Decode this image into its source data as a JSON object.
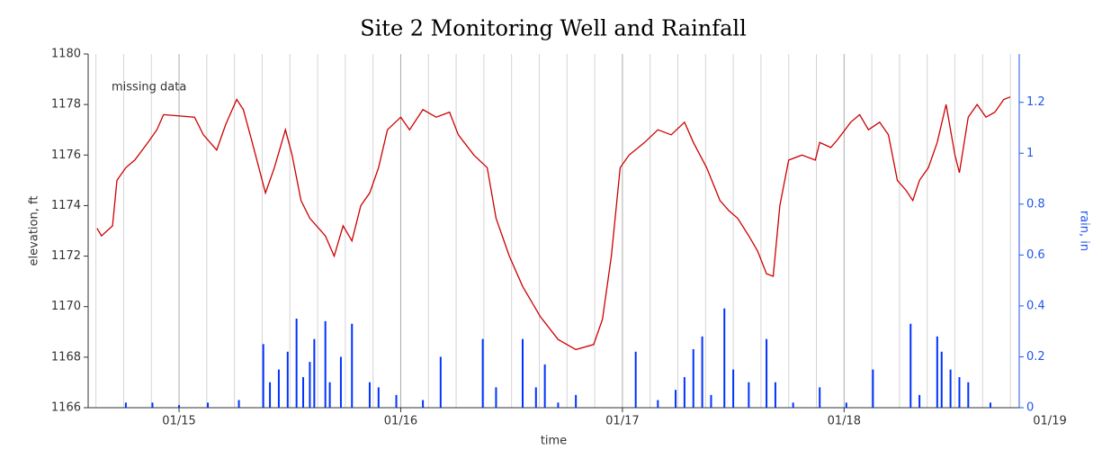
{
  "chart_data": {
    "type": "line",
    "title": "Site 2 Monitoring Well and Rainfall",
    "xlabel": "time",
    "ylabel": "elevation, ft",
    "y2label": "rain, in",
    "annotation": "missing data",
    "xlim": [
      14.59,
      18.79
    ],
    "xticks": [
      {
        "value": 15,
        "label": "01/15"
      },
      {
        "value": 16,
        "label": "01/16"
      },
      {
        "value": 17,
        "label": "01/17"
      },
      {
        "value": 18,
        "label": "01/18"
      },
      {
        "value": 19,
        "label": "01/19"
      }
    ],
    "xminorticks": [
      14.625,
      14.75,
      14.875,
      15.125,
      15.25,
      15.375,
      15.5,
      15.625,
      15.75,
      15.875,
      16.125,
      16.25,
      16.375,
      16.5,
      16.625,
      16.75,
      16.875,
      17.125,
      17.25,
      17.375,
      17.5,
      17.625,
      17.75,
      17.875,
      18.125,
      18.25,
      18.375,
      18.5,
      18.625,
      18.75
    ],
    "ylim": [
      1166,
      1180
    ],
    "yticks": [
      1166,
      1168,
      1170,
      1172,
      1174,
      1176,
      1178,
      1180
    ],
    "y2lim": [
      0,
      1.39
    ],
    "y2ticks": [
      0,
      0.2,
      0.4,
      0.6,
      0.8,
      1,
      1.2
    ],
    "grid": true,
    "series": [
      {
        "color": "#cc0000",
        "x": [
          14.63,
          14.65,
          14.7,
          14.72,
          14.76,
          14.8,
          14.86,
          14.9,
          14.93,
          15.07,
          15.11,
          15.17,
          15.21,
          15.26,
          15.29,
          15.33,
          15.39,
          15.43,
          15.48,
          15.51,
          15.55,
          15.59,
          15.66,
          15.7,
          15.74,
          15.78,
          15.82,
          15.86,
          15.9,
          15.94,
          16.0,
          16.04,
          16.1,
          16.16,
          16.22,
          16.26,
          16.33,
          16.39,
          16.43,
          16.49,
          16.55,
          16.63,
          16.71,
          16.79,
          16.87,
          16.91,
          16.95,
          16.99,
          17.03,
          17.1,
          17.16,
          17.22,
          17.28,
          17.32,
          17.38,
          17.44,
          17.48,
          17.52,
          17.57,
          17.61,
          17.65,
          17.68,
          17.71,
          17.75,
          17.81,
          17.87,
          17.89,
          17.94,
          17.97,
          18.03,
          18.07,
          18.11,
          18.16,
          18.2,
          18.24,
          18.28,
          18.31,
          18.34,
          18.38,
          18.42,
          18.46,
          18.5,
          18.52,
          18.56,
          18.6,
          18.64,
          18.68,
          18.72,
          18.75
        ],
        "values": [
          1173.1,
          1172.8,
          1173.2,
          1175,
          1175.5,
          1175.8,
          1176.5,
          1177,
          1177.6,
          1177.5,
          1176.8,
          1176.2,
          1177.2,
          1178.2,
          1177.8,
          1176.5,
          1174.5,
          1175.5,
          1177,
          1176,
          1174.2,
          1173.5,
          1172.8,
          1172,
          1173.2,
          1172.6,
          1174,
          1174.5,
          1175.5,
          1177,
          1177.5,
          1177,
          1177.8,
          1177.5,
          1177.7,
          1176.8,
          1176,
          1175.5,
          1173.5,
          1172,
          1170.8,
          1169.6,
          1168.7,
          1168.3,
          1168.5,
          1169.5,
          1172,
          1175.5,
          1176,
          1176.5,
          1177,
          1176.8,
          1177.3,
          1176.5,
          1175.5,
          1174.2,
          1173.8,
          1173.5,
          1172.8,
          1172.2,
          1171.3,
          1171.2,
          1174,
          1175.8,
          1176,
          1175.8,
          1176.5,
          1176.3,
          1176.6,
          1177.3,
          1177.6,
          1177,
          1177.3,
          1176.8,
          1175,
          1174.6,
          1174.2,
          1175,
          1175.5,
          1176.5,
          1178,
          1176,
          1175.3,
          1177.5,
          1178,
          1177.5,
          1177.7,
          1178.2,
          1178.3
        ]
      },
      {
        "type": "bar",
        "axis": "y2",
        "color": "#0033ff",
        "x": [
          14.76,
          14.88,
          15.0,
          15.13,
          15.27,
          15.38,
          15.41,
          15.45,
          15.49,
          15.53,
          15.56,
          15.59,
          15.61,
          15.66,
          15.68,
          15.73,
          15.78,
          15.86,
          15.9,
          15.98,
          16.1,
          16.18,
          16.37,
          16.43,
          16.55,
          16.61,
          16.65,
          16.71,
          16.79,
          17.06,
          17.16,
          17.24,
          17.28,
          17.32,
          17.36,
          17.4,
          17.46,
          17.5,
          17.57,
          17.65,
          17.69,
          17.77,
          17.89,
          18.01,
          18.13,
          18.3,
          18.34,
          18.42,
          18.44,
          18.48,
          18.52,
          18.56,
          18.66
        ],
        "values": [
          0.02,
          0.02,
          0.01,
          0.02,
          0.03,
          0.25,
          0.1,
          0.15,
          0.22,
          0.35,
          0.12,
          0.18,
          0.27,
          0.34,
          0.1,
          0.2,
          0.33,
          0.1,
          0.08,
          0.05,
          0.03,
          0.2,
          0.27,
          0.08,
          0.27,
          0.08,
          0.17,
          0.02,
          0.05,
          0.22,
          0.03,
          0.07,
          0.12,
          0.23,
          0.28,
          0.05,
          0.39,
          0.15,
          0.1,
          0.27,
          0.1,
          0.02,
          0.08,
          0.02,
          0.15,
          0.33,
          0.05,
          0.28,
          0.22,
          0.15,
          0.12,
          0.1,
          0.02
        ]
      }
    ]
  }
}
